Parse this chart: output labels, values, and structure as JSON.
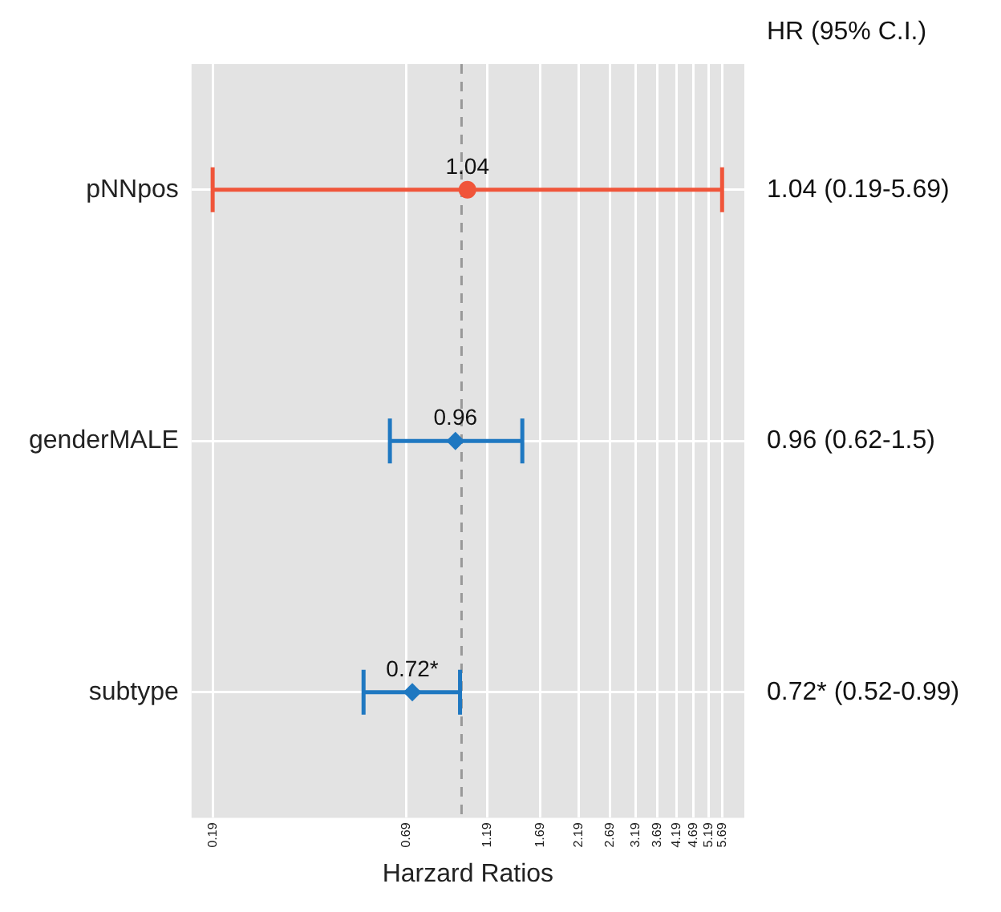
{
  "chart_data": {
    "type": "scatter",
    "orientation": "horizontal",
    "xlabel": "Harzard Ratios",
    "categories": [
      "pNNpos",
      "genderMALE",
      "subtype"
    ],
    "series": [
      {
        "color": "#f0553a",
        "marker": "circle",
        "values": [
          1.04,
          null,
          null
        ],
        "errors": [
          [
            0.19,
            5.69
          ],
          null,
          null
        ],
        "value_labels": [
          "1.04",
          null,
          null
        ]
      },
      {
        "color": "#1f78c1",
        "marker": "diamond",
        "values": [
          null,
          0.96,
          0.72
        ],
        "errors": [
          null,
          [
            0.62,
            1.5
          ],
          [
            0.52,
            0.99
          ]
        ],
        "value_labels": [
          null,
          "0.96",
          "0.72*"
        ]
      }
    ],
    "log": "x",
    "xlim": [
      0.165,
      6.6
    ],
    "xticks": [
      0.19,
      0.69,
      1.19,
      1.69,
      2.19,
      2.69,
      3.19,
      3.69,
      4.19,
      4.69,
      5.19,
      5.69
    ],
    "grid": true,
    "ref_lines": [
      {
        "axis": "x",
        "value": 1,
        "color": "#999999",
        "line_style": "dashed"
      }
    ],
    "annotations": [
      "HR (95% C.I.)",
      "1.04 (0.19-5.69)",
      "0.96 (0.62-1.5)",
      "0.72* (0.52-0.99)"
    ]
  }
}
